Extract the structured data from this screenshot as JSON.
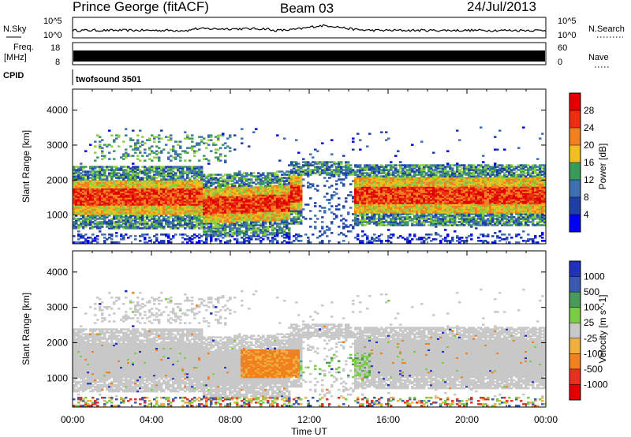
{
  "header": {
    "station": "Prince George (fitACF)",
    "beam": "Beam 03",
    "date": "24/Jul/2013"
  },
  "top_panels": {
    "nsky_label": "N.Sky",
    "nsky_ticks": [
      "10^5",
      "10^0"
    ],
    "nsearch_label": "N.Search",
    "nsearch_ticks": [
      "10^5",
      "10^0"
    ],
    "freq_label": "Freq.",
    "freq_unit": "[MHz]",
    "freq_ticks": [
      "18",
      "8"
    ],
    "nave_label": "Nave",
    "nave_ticks": [
      "60",
      "0"
    ],
    "cpid_label": "CPID",
    "cpid_value": "twofsound 3501"
  },
  "chart_data": [
    {
      "type": "heatmap",
      "panel": "power",
      "ylabel": "Slant Range [km]",
      "xlabel": "",
      "x_tick_labels": [
        "00:00",
        "04:00",
        "08:00",
        "12:00",
        "16:00",
        "20:00",
        "00:00"
      ],
      "x_range_hours": [
        0,
        24
      ],
      "y_ticks": [
        1000,
        2000,
        3000,
        4000
      ],
      "ylim": [
        180,
        4600
      ],
      "colorbar": {
        "label": "Power [dB]",
        "ticks": [
          "4",
          "8",
          "12",
          "16",
          "20",
          "24",
          "28"
        ],
        "colors": [
          "#0000ee",
          "#1f3fa8",
          "#3e6fb0",
          "#3a9a5a",
          "#8fcf3f",
          "#f0c020",
          "#f08020",
          "#e83010",
          "#e00000"
        ]
      },
      "bands": [
        {
          "hours": [
            0,
            6.5
          ],
          "range_km": [
            1200,
            1900
          ],
          "level": "high"
        },
        {
          "hours": [
            6.5,
            11
          ],
          "range_km": [
            900,
            1600
          ],
          "level": "high"
        },
        {
          "hours": [
            14,
            24
          ],
          "range_km": [
            1300,
            1800
          ],
          "level": "high"
        },
        {
          "hours": [
            0,
            24
          ],
          "range_km": [
            700,
            2500
          ],
          "level": "medium"
        },
        {
          "hours": [
            1,
            8
          ],
          "range_km": [
            2500,
            3500
          ],
          "level": "low"
        }
      ]
    },
    {
      "type": "heatmap",
      "panel": "velocity",
      "ylabel": "Slant Range [km]",
      "xlabel": "Time UT",
      "x_tick_labels": [
        "00:00",
        "04:00",
        "08:00",
        "12:00",
        "16:00",
        "20:00",
        "00:00"
      ],
      "x_range_hours": [
        0,
        24
      ],
      "y_ticks": [
        1000,
        2000,
        3000,
        4000
      ],
      "ylim": [
        180,
        4600
      ],
      "colorbar": {
        "label": "Velocity [m s^-1]",
        "ticks": [
          "1000",
          "500",
          "100",
          "25",
          "-25",
          "-100",
          "-500",
          "-1000"
        ],
        "colors": [
          "#2030c0",
          "#3a5ab0",
          "#4a9a5a",
          "#7acc44",
          "#c8c8c8",
          "#f0b040",
          "#f08020",
          "#e83020",
          "#e00000"
        ]
      },
      "bands": [
        {
          "hours": [
            0,
            24
          ],
          "range_km": [
            700,
            2500
          ],
          "velocity": "ground scatter (grey)"
        },
        {
          "hours": [
            8.5,
            11.5
          ],
          "range_km": [
            1000,
            1800
          ],
          "velocity": "negative (orange)"
        },
        {
          "hours": [
            11,
            15
          ],
          "range_km": [
            1000,
            1700
          ],
          "velocity": "positive (green)"
        }
      ]
    }
  ]
}
